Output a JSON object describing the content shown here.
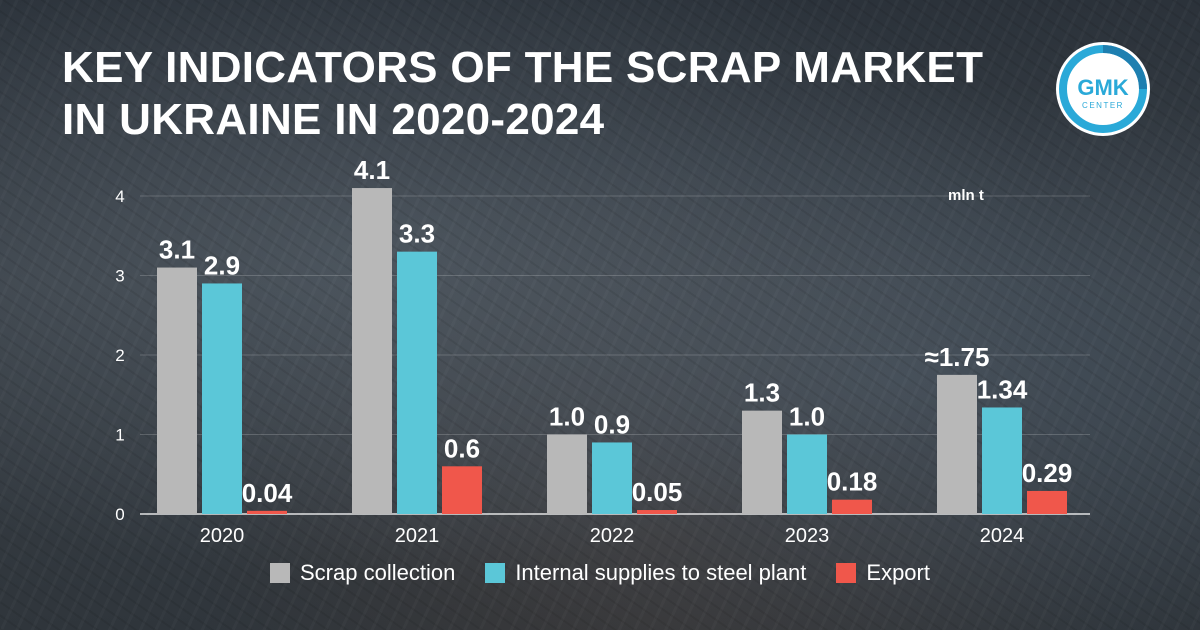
{
  "header": {
    "title_line1": "KEY INDICATORS OF THE SCRAP MARKET",
    "title_line2": "IN UKRAINE IN 2020-2024",
    "logo_text_top": "GMK",
    "logo_text_bottom": "CENTER"
  },
  "colors": {
    "scrap_collection": "#b8b8b8",
    "internal_supplies": "#5bc7d8",
    "export": "#f0574b",
    "logo_ring": "#2aa9d8"
  },
  "chart_data": {
    "type": "bar",
    "title": "KEY INDICATORS OF THE SCRAP MARKET IN UKRAINE IN 2020-2024",
    "unit": "mln t",
    "categories": [
      "2020",
      "2021",
      "2022",
      "2023",
      "2024"
    ],
    "series": [
      {
        "name": "Scrap collection",
        "values": [
          3.1,
          4.1,
          1.0,
          1.3,
          1.75
        ],
        "labels": [
          "3.1",
          "4.1",
          "1.0",
          "1.3",
          "≈1.75"
        ]
      },
      {
        "name": "Internal supplies to steel plant",
        "values": [
          2.9,
          3.3,
          0.9,
          1.0,
          1.34
        ],
        "labels": [
          "2.9",
          "3.3",
          "0.9",
          "1.0",
          "1.34"
        ]
      },
      {
        "name": "Export",
        "values": [
          0.04,
          0.6,
          0.05,
          0.18,
          0.29
        ],
        "labels": [
          "0.04",
          "0.6",
          "0.05",
          "0.18",
          "0.29"
        ]
      }
    ],
    "yticks": [
      "0",
      "1",
      "2",
      "3",
      "4"
    ],
    "ylim": [
      0,
      4.2
    ],
    "grid": true,
    "legend": "bottom-center"
  }
}
